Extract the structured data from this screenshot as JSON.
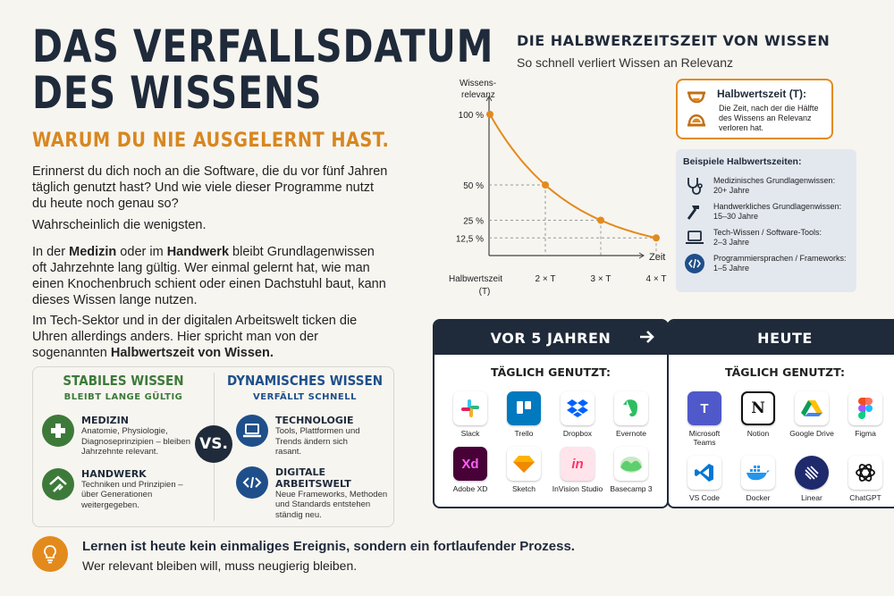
{
  "title": {
    "line1": "Das Verfallsdatum",
    "line2": "des Wissens"
  },
  "subtitle": "Warum du nie ausgelernt hast.",
  "intro": {
    "p1": "Erinnerst du dich noch an die Software, die du vor fünf Jahren täglich genutzt hast? Und wie viele dieser Programme nutzt du heute noch genau so?",
    "p2": "Wahrscheinlich die wenigsten.",
    "p3_a": "In der ",
    "p3_b": "Medizin",
    "p3_c": " oder im ",
    "p3_d": "Handwerk",
    "p3_e": " bleibt Grundlagenwissen oft Jahrzehnte lang gültig. Wer einmal gelernt hat, wie man einen Knochenbruch schient oder einen Dachstuhl baut, kann dieses Wissen lange nutzen.",
    "p4_a": "Im ",
    "p4_b": "Tech-Sektor",
    "p4_c": " und in der digitalen Arbeitswelt ticken die Uhren allerdings anders. Hier spricht man von der sogenannten ",
    "p4_d": "Halbwertszeit von Wissen."
  },
  "compare": {
    "stable": {
      "heading": "STABILES WISSEN",
      "sub": "BLEIBT LANGE GÜLTIG",
      "items": [
        {
          "title": "MEDIZIN",
          "text": "Anatomie, Physiologie, Diagnoseprinzipien – bleiben Jahrzehnte relevant."
        },
        {
          "title": "HANDWERK",
          "text": "Techniken und Prinzipien – über Generationen weitergegeben."
        }
      ]
    },
    "vs": "VS.",
    "dynamic": {
      "heading": "DYNAMISCHES WISSEN",
      "sub": "VERFÄLLT SCHNELL",
      "items": [
        {
          "title": "TECHNOLOGIE",
          "text": "Tools, Plattformen und Trends ändern sich rasant."
        },
        {
          "title": "DIGITALE ARBEITSWELT",
          "text": "Neue Frameworks, Methoden und Standards entstehen ständig neu."
        }
      ]
    }
  },
  "footer": {
    "line1": "Lernen ist heute kein einmaliges Ereignis, sondern ein fortlaufender Prozess.",
    "line2": "Wer relevant bleiben will, muss neugierig bleiben."
  },
  "chart_header": {
    "title": "DIE HALBWERZEITSZEIT VON WISSEN",
    "subtitle": "So schnell verliert Wissen an Relevanz"
  },
  "chart_data": {
    "type": "line",
    "title": "",
    "ylabel_line1": "Wissens-",
    "ylabel_line2": "relevanz",
    "xlabel": "Zeit",
    "x_labels": [
      "Halbwertszeit",
      "(T)",
      "2 × T",
      "3 × T",
      "4 × T"
    ],
    "y_tick_labels": [
      "100 %",
      "50 %",
      "25 %",
      "12,5 %"
    ],
    "x": [
      0,
      1,
      2,
      3
    ],
    "y": [
      100,
      50,
      25,
      12.5
    ],
    "ylim": [
      0,
      100
    ],
    "grid": false,
    "colors": {
      "line": "#e38a1d",
      "axis": "#444444",
      "guide": "#999999"
    }
  },
  "halflife_card": {
    "title": "Halbwertszeit (T):",
    "text": "Die Zeit, nach der die Hälfte des Wissens an Relevanz verloren hat."
  },
  "examples": {
    "heading": "Beispiele Halbwertszeiten:",
    "items": [
      {
        "icon": "stethoscope-icon",
        "line1": "Medizinisches Grundlagenwissen:",
        "line2": "20+ Jahre"
      },
      {
        "icon": "hammer-icon",
        "line1": "Handwerkliches Grundlagenwissen:",
        "line2": "15–30 Jahre"
      },
      {
        "icon": "laptop-icon",
        "line1": "Tech-Wissen / Software-Tools:",
        "line2": "2–3 Jahre"
      },
      {
        "icon": "code-icon",
        "line1": "Programmiersprachen / Frameworks:",
        "line2": "1–5 Jahre"
      }
    ]
  },
  "panels": {
    "before": {
      "heading": "VOR 5 JAHREN",
      "sub": "TÄGLICH GENUTZT:",
      "tools": [
        {
          "name": "Slack",
          "icon": "slack-icon"
        },
        {
          "name": "Trello",
          "icon": "trello-icon"
        },
        {
          "name": "Dropbox",
          "icon": "dropbox-icon"
        },
        {
          "name": "Evernote",
          "icon": "evernote-icon"
        },
        {
          "name": "Adobe XD",
          "icon": "adobe-xd-icon"
        },
        {
          "name": "Sketch",
          "icon": "sketch-icon"
        },
        {
          "name": "InVision Studio",
          "icon": "invision-icon"
        },
        {
          "name": "Basecamp 3",
          "icon": "basecamp-icon"
        }
      ]
    },
    "now": {
      "heading": "HEUTE",
      "sub": "TÄGLICH GENUTZT:",
      "tools": [
        {
          "name": "Microsoft Teams",
          "icon": "teams-icon"
        },
        {
          "name": "Notion",
          "icon": "notion-icon"
        },
        {
          "name": "Google Drive",
          "icon": "google-drive-icon"
        },
        {
          "name": "Figma",
          "icon": "figma-icon"
        },
        {
          "name": "VS Code",
          "icon": "vscode-icon"
        },
        {
          "name": "Docker",
          "icon": "docker-icon"
        },
        {
          "name": "Linear",
          "icon": "linear-icon"
        },
        {
          "name": "ChatGPT",
          "icon": "chatgpt-icon"
        }
      ]
    }
  },
  "colors": {
    "navy": "#1f2a3a",
    "orange": "#e38a1d",
    "green": "#3d7a3a",
    "blue": "#1f4f8a"
  }
}
